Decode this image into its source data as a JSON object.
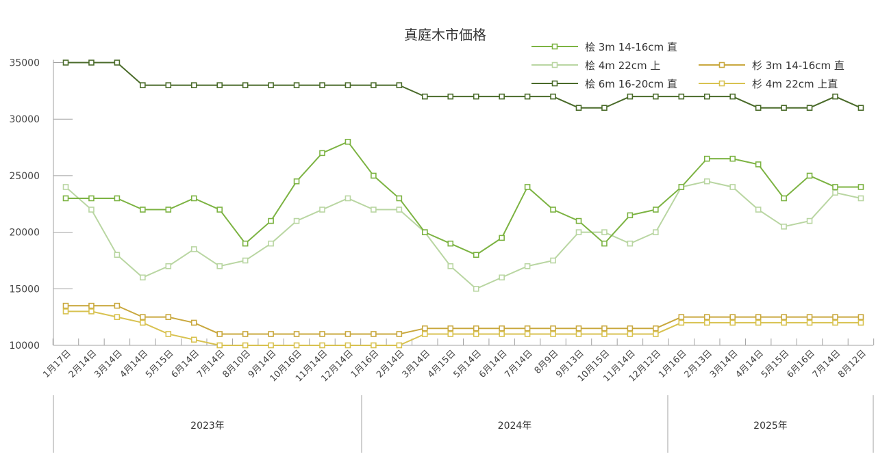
{
  "chart_data": {
    "type": "line",
    "title": "真庭木市価格",
    "xlabel": "",
    "ylabel": "",
    "ylim": [
      10000,
      36000
    ],
    "yticks": [
      10000,
      15000,
      20000,
      25000,
      30000,
      35000
    ],
    "grid": false,
    "legend_position": "top-right",
    "categories": [
      "1月17日",
      "2月14日",
      "3月14日",
      "4月14日",
      "5月15日",
      "6月14日",
      "7月14日",
      "8月10日",
      "9月14日",
      "10月16日",
      "11月14日",
      "12月14日",
      "1月16日",
      "2月14日",
      "3月14日",
      "4月15日",
      "5月14日",
      "6月14日",
      "7月14日",
      "8月9日",
      "9月13日",
      "10月15日",
      "11月14日",
      "12月12日",
      "1月16日",
      "2月13日",
      "3月14日",
      "4月14日",
      "5月15日",
      "6月16日",
      "7月14日",
      "8月12日"
    ],
    "year_groups": [
      {
        "label": "2023年",
        "start": 0,
        "end": 11
      },
      {
        "label": "2024年",
        "start": 12,
        "end": 23
      },
      {
        "label": "2025年",
        "start": 24,
        "end": 31
      }
    ],
    "series": [
      {
        "name": "桧 3m 14-16cm 直",
        "color": "#7cb342",
        "values": [
          23000,
          23000,
          23000,
          22000,
          22000,
          23000,
          22000,
          19000,
          21000,
          24500,
          27000,
          28000,
          25000,
          23000,
          20000,
          19000,
          18000,
          19500,
          24000,
          22000,
          21000,
          19000,
          21500,
          22000,
          24000,
          26500,
          26500,
          26000,
          23000,
          25000,
          24000,
          24000
        ]
      },
      {
        "name": "桧 4m 22cm 上",
        "color": "#b9d6a2",
        "values": [
          24000,
          22000,
          18000,
          16000,
          17000,
          18500,
          17000,
          17500,
          19000,
          21000,
          22000,
          23000,
          22000,
          22000,
          20000,
          17000,
          15000,
          16000,
          17000,
          17500,
          20000,
          20000,
          19000,
          20000,
          24000,
          24500,
          24000,
          22000,
          20500,
          21000,
          23500,
          23000
        ]
      },
      {
        "name": "桧 6m 16-20cm 直",
        "color": "#4a6b2a",
        "values": [
          35000,
          35000,
          35000,
          33000,
          33000,
          33000,
          33000,
          33000,
          33000,
          33000,
          33000,
          33000,
          33000,
          33000,
          32000,
          32000,
          32000,
          32000,
          32000,
          32000,
          31000,
          31000,
          32000,
          32000,
          32000,
          32000,
          32000,
          31000,
          31000,
          31000,
          32000,
          31000
        ]
      },
      {
        "name": "杉 3m 14-16cm 直",
        "color": "#c9a83e",
        "values": [
          13500,
          13500,
          13500,
          12500,
          12500,
          12000,
          11000,
          11000,
          11000,
          11000,
          11000,
          11000,
          11000,
          11000,
          11500,
          11500,
          11500,
          11500,
          11500,
          11500,
          11500,
          11500,
          11500,
          11500,
          12500,
          12500,
          12500,
          12500,
          12500,
          12500,
          12500,
          12500
        ]
      },
      {
        "name": "杉 4m 22cm 上直",
        "color": "#d8c250",
        "values": [
          13000,
          13000,
          12500,
          12000,
          11000,
          10500,
          10000,
          10000,
          10000,
          10000,
          10000,
          10000,
          10000,
          10000,
          11000,
          11000,
          11000,
          11000,
          11000,
          11000,
          11000,
          11000,
          11000,
          11000,
          12000,
          12000,
          12000,
          12000,
          12000,
          12000,
          12000,
          12000
        ]
      }
    ]
  }
}
